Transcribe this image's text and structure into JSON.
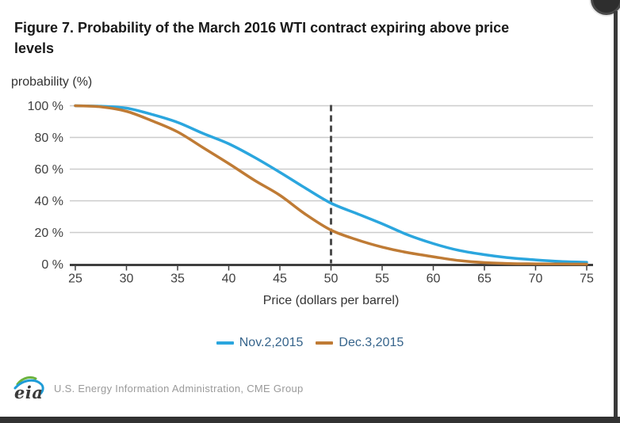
{
  "title": "Figure 7. Probability of the March 2016 WTI contract expiring above price levels",
  "chart_data": {
    "type": "line",
    "ylabel": "probability (%)",
    "xlabel": "Price (dollars per barrel)",
    "xlim": [
      25,
      75
    ],
    "ylim": [
      0,
      100
    ],
    "grid": true,
    "legend_position": "bottom",
    "marker_line_x": 50,
    "xticks": [
      25,
      30,
      35,
      40,
      45,
      50,
      55,
      60,
      65,
      70,
      75
    ],
    "yticks": [
      0,
      20,
      40,
      60,
      80,
      100
    ],
    "ytick_suffix": " %",
    "x": [
      25,
      27.5,
      30,
      32.5,
      35,
      37.5,
      40,
      42.5,
      45,
      47.5,
      50,
      52.5,
      55,
      57.5,
      60,
      62.5,
      65,
      67.5,
      70,
      72.5,
      75
    ],
    "series": [
      {
        "name": "Nov.2,2015",
        "color": "#2ba6de",
        "values": [
          100,
          99.7,
          98.5,
          94.5,
          89.5,
          82.5,
          76,
          67.5,
          58,
          48,
          38.5,
          32,
          25.5,
          18.5,
          13,
          8.7,
          6,
          4,
          2.7,
          1.7,
          1.2
        ]
      },
      {
        "name": "Dec.3,2015",
        "color": "#bf7b35",
        "values": [
          100,
          99.3,
          96.5,
          90.5,
          83.5,
          73.5,
          63.5,
          53,
          43.5,
          31.5,
          21.5,
          15.5,
          10.8,
          7.3,
          4.7,
          2.3,
          1,
          0.4,
          0.2,
          0.1,
          0
        ]
      }
    ],
    "colors": {
      "grid": "#cccccc",
      "axis": "#3f3f3f",
      "marker_line": "#4d4d4d",
      "tick_text": "#404040"
    }
  },
  "legend": {
    "items": [
      "Nov.2,2015",
      "Dec.3,2015"
    ]
  },
  "footer": {
    "logo_text": "eia",
    "source_text": "U.S. Energy Information Administration, CME Group"
  }
}
